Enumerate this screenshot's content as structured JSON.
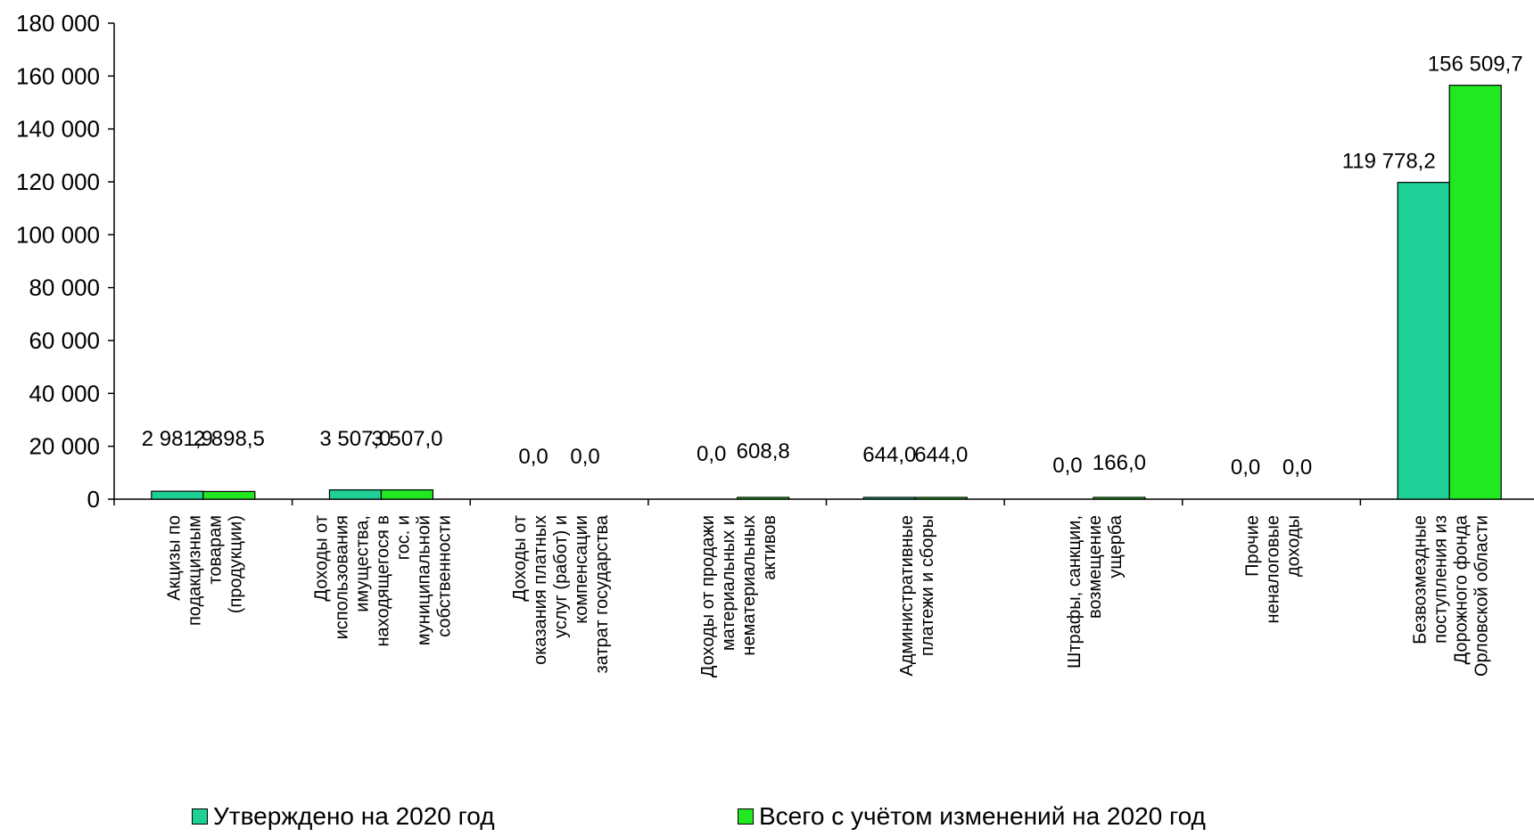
{
  "chart_data": {
    "type": "bar",
    "title": "",
    "xlabel": "",
    "ylabel": "",
    "ylim": [
      0,
      180000
    ],
    "ytick_step": 20000,
    "ytick_labels": [
      "0",
      "20 000",
      "40 000",
      "60 000",
      "80 000",
      "100 000",
      "120 000",
      "140 000",
      "160 000",
      "180 000"
    ],
    "grid": false,
    "legend_position": "bottom",
    "categories": [
      "Акцизы по подакцизным товарам (продукции)",
      "Доходы от использования имущества, находящегося в гос. и муниципальной собственности",
      "Доходы от оказания платных услуг (работ) и компенсации затрат государства",
      "Доходы от продажи материальных и нематериальных активов",
      "Административные платежи и сборы",
      "Штрафы, санкции, возмещение ущерба",
      "Прочие неналоговые доходы",
      "Безвозмездные поступления из Дорожного фонда Орловской области"
    ],
    "category_lines": [
      [
        "Акцизы по",
        "подакцизным",
        "товарам",
        "(продукции)"
      ],
      [
        "Доходы от",
        "использования",
        "имущества,",
        "находящегося в",
        "гос. и",
        "муниципальной",
        "собственности"
      ],
      [
        "Доходы от",
        "оказания платных",
        "услуг (работ) и",
        "компенсации",
        "затрат государства"
      ],
      [
        "Доходы от продажи",
        "материальных и",
        "нематериальных",
        "активов"
      ],
      [
        "Административные",
        "платежи и сборы"
      ],
      [
        "Штрафы, санкции,",
        "возмещение",
        "ущерба"
      ],
      [
        "Прочие",
        "неналоговые",
        "доходы"
      ],
      [
        "Безвозмездные",
        "поступления из",
        "Дорожного фонда",
        "Орловской области"
      ]
    ],
    "series": [
      {
        "name": "Утверждено на 2020 год",
        "color": "#1ECF96",
        "values": [
          2981.9,
          3507.0,
          0.0,
          0.0,
          644.0,
          0.0,
          0.0,
          119778.2
        ],
        "labels": [
          "2 981,9",
          "3 507,0",
          "0,0",
          "0,0",
          "644,0",
          "0,0",
          "0,0",
          "119 778,2"
        ]
      },
      {
        "name": "Всего с учётом изменений на 2020 год",
        "color": "#22E822",
        "values": [
          2898.5,
          3507.0,
          0.0,
          608.8,
          644.0,
          166.0,
          0.0,
          156509.7
        ],
        "labels": [
          "2 898,5",
          "3 507,0",
          "0,0",
          "608,8",
          "644,0",
          "166,0",
          "0,0",
          "156 509,7"
        ]
      }
    ]
  }
}
